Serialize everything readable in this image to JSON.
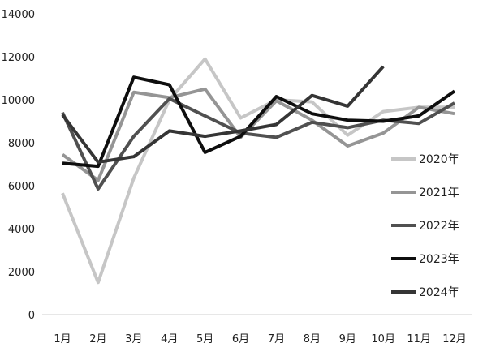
{
  "chart_data": {
    "type": "line",
    "categories": [
      "1月",
      "2月",
      "3月",
      "4月",
      "5月",
      "6月",
      "7月",
      "8月",
      "9月",
      "10月",
      "11月",
      "12月"
    ],
    "ylim": [
      0,
      14000
    ],
    "yticks": [
      0,
      2000,
      4000,
      6000,
      8000,
      10000,
      12000,
      14000
    ],
    "legend_position": "right",
    "grid": false,
    "series": [
      {
        "name": "2020年",
        "color": "#c6c6c6",
        "values": [
          5650,
          1500,
          6350,
          10000,
          11900,
          9150,
          10000,
          9900,
          8350,
          9450,
          9650,
          9650
        ]
      },
      {
        "name": "2021年",
        "color": "#959595",
        "values": [
          7450,
          6250,
          10350,
          10100,
          10500,
          8250,
          9950,
          9050,
          7850,
          8450,
          9650,
          9350
        ]
      },
      {
        "name": "2022年",
        "color": "#505050",
        "values": [
          9400,
          5850,
          8300,
          10050,
          9250,
          8450,
          8250,
          8950,
          8700,
          9050,
          8900,
          9850
        ]
      },
      {
        "name": "2023年",
        "color": "#0e0e0e",
        "values": [
          7050,
          6900,
          11050,
          10700,
          7550,
          8300,
          10150,
          9350,
          9050,
          9000,
          9250,
          10400
        ]
      },
      {
        "name": "2024年",
        "color": "#353535",
        "values": [
          9300,
          7100,
          7350,
          8550,
          8300,
          8550,
          8850,
          10200,
          9700,
          11550,
          null,
          null
        ]
      }
    ]
  }
}
